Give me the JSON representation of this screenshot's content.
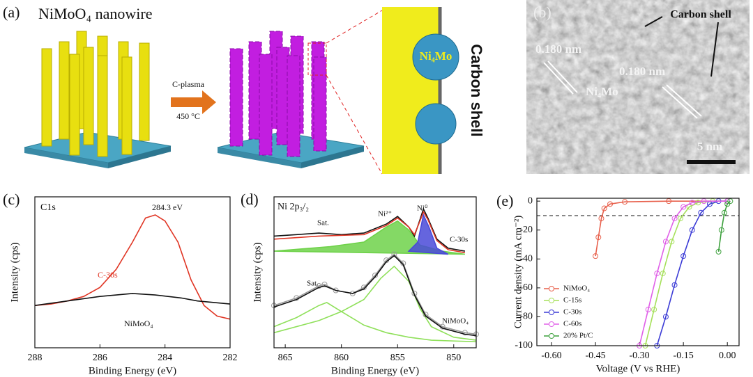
{
  "figure": {
    "panel_a": {
      "label": "(a)",
      "title": "NiMoO₄ nanowire",
      "arrow_top": "C-plasma",
      "arrow_bottom": "450 °C",
      "particle": "Ni₄Mo",
      "shell": "Carbon shell"
    },
    "panel_b": {
      "label": "(b)",
      "shell": "Carbon shell",
      "spacing_1": "0.180 nm",
      "spacing_2": "0.180 nm",
      "phase": "Ni₄Mo",
      "scale": "5 nm"
    }
  },
  "chart_data": [
    {
      "type": "line",
      "panel_label": "(c)",
      "x_label": "Binding Energy (eV)",
      "y_label": "Intensity (cps)",
      "xlim": [
        288,
        282
      ],
      "ylim": [
        0,
        100
      ],
      "xticks": [
        288,
        286,
        284,
        282
      ],
      "annotations": [
        "C1s",
        "284.3 eV",
        "C-30s",
        "NiMoO₄"
      ],
      "series": [
        {
          "color": "#e03524",
          "x": [
            288,
            287.5,
            287,
            286.5,
            286,
            285.5,
            285,
            284.6,
            284.3,
            284,
            283.6,
            283.2,
            282.8,
            282.4,
            282
          ],
          "values": [
            28,
            29,
            31,
            34,
            40,
            52,
            70,
            86,
            88,
            84,
            70,
            45,
            28,
            21,
            19
          ]
        },
        {
          "color": "#111111",
          "x": [
            288,
            287,
            286,
            285,
            284.3,
            283.5,
            283,
            282
          ],
          "values": [
            28,
            31,
            34,
            36,
            35,
            33,
            31,
            29
          ]
        }
      ]
    },
    {
      "type": "line",
      "panel_label": "(d)",
      "x_label": "Binding Energy (eV)",
      "y_label": "Intensity (cps)",
      "xlim": [
        866,
        848
      ],
      "ylim": [
        0,
        100
      ],
      "xticks": [
        865,
        860,
        855,
        850
      ],
      "annotations": [
        "Ni 2p₃/₂",
        "Sat.",
        "Ni²⁺",
        "Ni⁰",
        "C-30s",
        "Sat.",
        "NiMoO₄"
      ],
      "series": [
        {
          "color": "#6fd24a",
          "fill": true,
          "x": [
            866,
            861,
            858,
            856,
            855,
            854,
            853,
            851,
            849
          ],
          "values": [
            64,
            67,
            70,
            80,
            84,
            78,
            68,
            64,
            62
          ]
        },
        {
          "color": "#4a4ad8",
          "fill": true,
          "x": [
            854,
            853.2,
            852.7,
            852.2,
            851.5,
            850.5
          ],
          "values": [
            64,
            70,
            88,
            80,
            66,
            62
          ]
        },
        {
          "color": "#111111",
          "x": [
            866,
            864,
            862,
            860,
            858,
            856,
            855,
            854,
            853.5,
            853,
            852.7,
            852.3,
            851.5,
            850.5,
            849
          ],
          "values": [
            74,
            75,
            76,
            75,
            76,
            82,
            87,
            80,
            74,
            85,
            92,
            86,
            72,
            66,
            64
          ]
        },
        {
          "color": "#e03524",
          "x": [
            866,
            862,
            858,
            856,
            855,
            854,
            853.5,
            853,
            852.7,
            852.3,
            851.5,
            850.5,
            849
          ],
          "values": [
            72,
            74,
            75,
            81,
            86,
            80,
            75,
            84,
            90,
            85,
            71,
            65,
            63
          ]
        },
        {
          "color": "#8fe05a",
          "x": [
            866,
            862,
            860,
            858,
            856.5,
            855.3,
            854,
            853,
            852,
            850,
            848
          ],
          "values": [
            10,
            18,
            24,
            32,
            46,
            54,
            44,
            26,
            14,
            7,
            5
          ]
        },
        {
          "color": "#8fe05a",
          "x": [
            866,
            864,
            862,
            861.3,
            860,
            858,
            856,
            854,
            852,
            848
          ],
          "values": [
            14,
            20,
            28,
            30,
            24,
            15,
            10,
            7,
            5,
            4
          ]
        },
        {
          "color": "#999999",
          "marker": "circle",
          "x": [
            866,
            864,
            862,
            861.5,
            860.5,
            859,
            858,
            857,
            856,
            855.3,
            854.5,
            853.5,
            852.5,
            851,
            849,
            848
          ],
          "values": [
            28,
            33,
            41,
            42,
            38,
            36,
            40,
            48,
            58,
            62,
            56,
            36,
            22,
            14,
            10,
            9
          ]
        },
        {
          "color": "#111111",
          "x": [
            866,
            864,
            862,
            861.5,
            860.5,
            859,
            858,
            857,
            856,
            855.3,
            854.5,
            853.5,
            852.5,
            851,
            849,
            848
          ],
          "values": [
            27,
            32,
            40,
            41,
            38,
            36,
            39,
            47,
            57,
            61,
            55,
            35,
            21,
            13,
            9,
            8
          ]
        }
      ]
    },
    {
      "type": "line",
      "panel_label": "(e)",
      "x_label": "Voltage (V vs RHE)",
      "y_label": "Current density (mA cm⁻²)",
      "xlim": [
        -0.65,
        0.04
      ],
      "ylim": [
        -100,
        2
      ],
      "xticks": [
        {
          "value": -0.6,
          "label": "-0.60"
        },
        {
          "value": -0.45,
          "label": "-0.45"
        },
        {
          "value": -0.3,
          "label": "-0.30"
        },
        {
          "value": -0.15,
          "label": "-0.15"
        },
        {
          "value": 0,
          "label": "0.00"
        }
      ],
      "yticks": [
        0,
        -20,
        -40,
        -60,
        -80,
        -100
      ],
      "reference_line": -10,
      "legend": "lower left",
      "series": [
        {
          "name": "NiMoO₄",
          "color": "#e8604c",
          "marker": "circle",
          "x": [
            -0.45,
            -0.44,
            -0.43,
            -0.42,
            -0.4,
            -0.35,
            -0.2,
            0
          ],
          "values": [
            -38,
            -25,
            -12,
            -5,
            -2,
            -0.5,
            0,
            0
          ]
        },
        {
          "name": "C-15s",
          "color": "#a6e05a",
          "marker": "circle",
          "x": [
            -0.28,
            -0.25,
            -0.22,
            -0.19,
            -0.16,
            -0.13,
            -0.1,
            -0.05,
            0
          ],
          "values": [
            -100,
            -75,
            -50,
            -28,
            -12,
            -4,
            -1,
            0,
            0
          ]
        },
        {
          "name": "C-30s",
          "color": "#3b3bd6",
          "marker": "circle",
          "x": [
            -0.24,
            -0.21,
            -0.18,
            -0.15,
            -0.12,
            -0.09,
            -0.06,
            -0.03,
            0
          ],
          "values": [
            -100,
            -80,
            -58,
            -38,
            -20,
            -8,
            -2,
            0,
            0
          ]
        },
        {
          "name": "C-60s",
          "color": "#e060e8",
          "marker": "circle",
          "x": [
            -0.3,
            -0.27,
            -0.24,
            -0.21,
            -0.18,
            -0.15,
            -0.12,
            -0.08,
            0
          ],
          "values": [
            -100,
            -75,
            -50,
            -28,
            -12,
            -4,
            -1,
            0,
            0
          ]
        },
        {
          "name": "20% Pt/C",
          "color": "#3ca03c",
          "marker": "circle",
          "x": [
            -0.03,
            -0.02,
            -0.01,
            0,
            0.01
          ],
          "values": [
            -35,
            -20,
            -8,
            -2,
            0
          ]
        }
      ]
    }
  ]
}
